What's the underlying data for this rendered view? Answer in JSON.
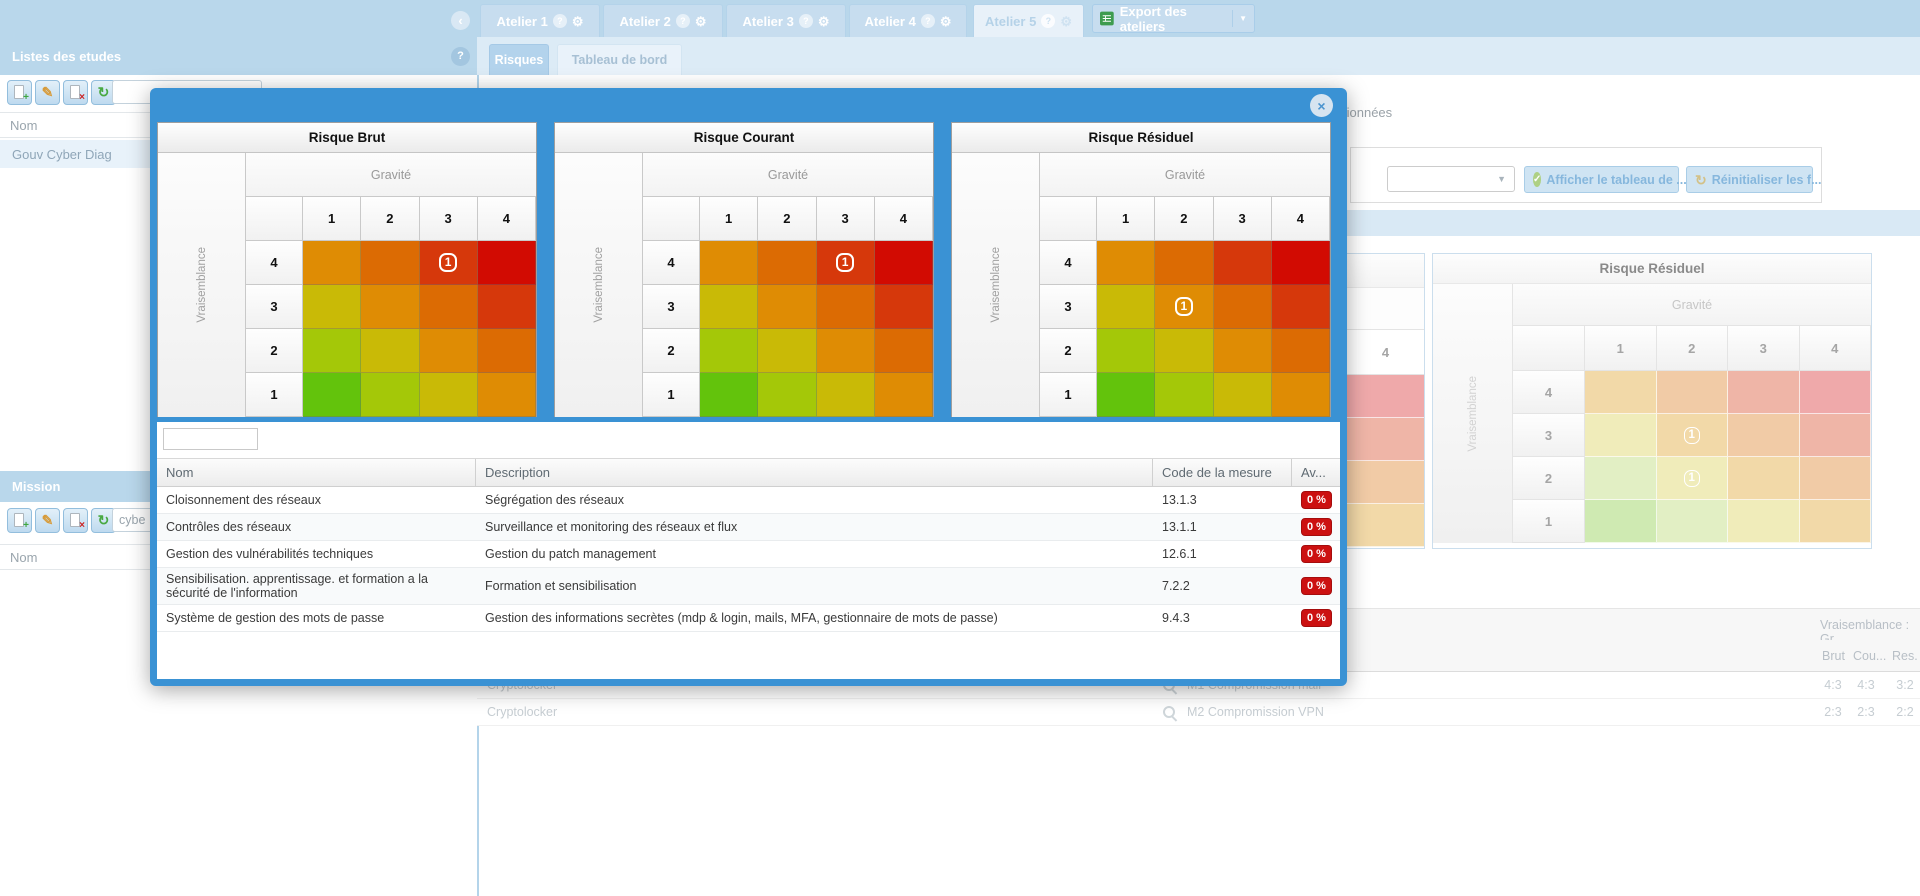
{
  "icons": {
    "back": "‹",
    "help": "?",
    "gear": "⚙",
    "caret_down": "▼",
    "close": "×",
    "check": "✓",
    "refresh": "↻",
    "new_doc": "+",
    "edit_doc": "✎",
    "delete_doc": "×"
  },
  "topbar": {
    "tabs": [
      "Atelier 1",
      "Atelier 2",
      "Atelier 3",
      "Atelier 4",
      "Atelier 5"
    ],
    "active_tab": "Atelier 5",
    "export_label": "Export des ateliers"
  },
  "nav": {
    "tabs": [
      {
        "label": "Risques"
      },
      {
        "label": "Tableau de bord"
      }
    ],
    "active_tab": "Tableau de bord"
  },
  "studies": {
    "title": "Listes des etudes",
    "search_value": "",
    "column_nom": "Nom",
    "rows": [
      "Gouv Cyber Diag"
    ]
  },
  "mission": {
    "title": "Mission",
    "search_value": "cybe",
    "column_nom": "Nom"
  },
  "dialog": {
    "matrices": [
      {
        "title": "Risque Brut",
        "x_axis": "Gravité",
        "y_axis": "Vraisemblance",
        "cols": [
          "1",
          "2",
          "3",
          "4"
        ],
        "rows": [
          "4",
          "3",
          "2",
          "1"
        ],
        "badges": [
          {
            "row": "4",
            "col": "3",
            "count": "1"
          }
        ]
      },
      {
        "title": "Risque Courant",
        "x_axis": "Gravité",
        "y_axis": "Vraisemblance",
        "cols": [
          "1",
          "2",
          "3",
          "4"
        ],
        "rows": [
          "4",
          "3",
          "2",
          "1"
        ],
        "badges": [
          {
            "row": "4",
            "col": "3",
            "count": "1"
          }
        ]
      },
      {
        "title": "Risque Résiduel",
        "x_axis": "Gravité",
        "y_axis": "Vraisemblance",
        "cols": [
          "1",
          "2",
          "3",
          "4"
        ],
        "rows": [
          "4",
          "3",
          "2",
          "1"
        ],
        "badges": [
          {
            "row": "3",
            "col": "2",
            "count": "1"
          }
        ]
      }
    ],
    "palette": [
      [
        "#df8c04",
        "#dc6b03",
        "#d6380b",
        "#d20b02"
      ],
      [
        "#c9ba06",
        "#df8c04",
        "#dc6b03",
        "#d6380b"
      ],
      [
        "#a4c808",
        "#c9ba06",
        "#df8c04",
        "#dc6b03"
      ],
      [
        "#63c30c",
        "#a4c808",
        "#c9ba06",
        "#df8c04"
      ]
    ],
    "filter_value": "",
    "measures": {
      "headers": [
        "Nom",
        "Description",
        "Code de la mesure",
        "Av..."
      ],
      "rows": [
        {
          "nom": "Cloisonnement des réseaux",
          "description": "Ségrégation des réseaux",
          "code": "13.1.3",
          "avancement": "0 %"
        },
        {
          "nom": "Contrôles des réseaux",
          "description": "Surveillance et monitoring des réseaux et flux",
          "code": "13.1.1",
          "avancement": "0 %"
        },
        {
          "nom": "Gestion des vulnérabilités techniques",
          "description": "Gestion du patch management",
          "code": "12.6.1",
          "avancement": "0 %"
        },
        {
          "nom": "Sensibilisation. apprentissage. et formation a la sécurité de l'information",
          "description": "Formation et sensibilisation",
          "code": "7.2.2",
          "avancement": "0 %"
        },
        {
          "nom": "Système de gestion des mots de passe",
          "description": "Gestion des informations secrètes (mdp & login, mails, MFA, gestionnaire de mots de passe)",
          "code": "9.4.3",
          "avancement": "0 %"
        }
      ],
      "badge_color": "#cc1111"
    }
  },
  "background": {
    "partial_text": "tionnées",
    "dropdown_value": "",
    "buttons": [
      {
        "label": "Afficher le tableau de ..."
      },
      {
        "label": "Réinitialiser les f..."
      }
    ],
    "faded_matrix": {
      "title": "Risque Résiduel",
      "x_axis": "Gravité",
      "y_axis": "Vraisemblance",
      "cols": [
        "1",
        "2",
        "3",
        "4"
      ],
      "rows": [
        "4",
        "3",
        "2",
        "1"
      ],
      "badges": [
        {
          "row": "3",
          "col": "2",
          "count": "1"
        },
        {
          "row": "2",
          "col": "2",
          "count": "1"
        }
      ]
    },
    "faded_palette": [
      [
        "#f2d9a8",
        "#f1cba6",
        "#efb5a7",
        "#efa9aa"
      ],
      [
        "#f0ecba",
        "#f2d9a8",
        "#f1cba6",
        "#efb5a7"
      ],
      [
        "#e2efc4",
        "#f0ecba",
        "#f2d9a8",
        "#f1cba6"
      ],
      [
        "#cfeab2",
        "#e2efc4",
        "#f0ecba",
        "#f2d9a8"
      ]
    ],
    "partial_matrix": {
      "col_header": "4",
      "colors": [
        "#efa9aa",
        "#efb5a7",
        "#f1cba6",
        "#f2d9a8"
      ]
    },
    "risk_table": {
      "group_header": "Vraisemblance : Gr...",
      "columns": [
        "Brut",
        "Cou...",
        "Res."
      ],
      "rows": [
        {
          "name": "Cryptolocker",
          "scenario": "M1 Compromission mail",
          "brut": "4:3",
          "courant": "4:3",
          "residuel": "3:2"
        },
        {
          "name": "Cryptolocker",
          "scenario": "M2 Compromission VPN",
          "brut": "2:3",
          "courant": "2:3",
          "residuel": "2:2"
        }
      ]
    }
  }
}
